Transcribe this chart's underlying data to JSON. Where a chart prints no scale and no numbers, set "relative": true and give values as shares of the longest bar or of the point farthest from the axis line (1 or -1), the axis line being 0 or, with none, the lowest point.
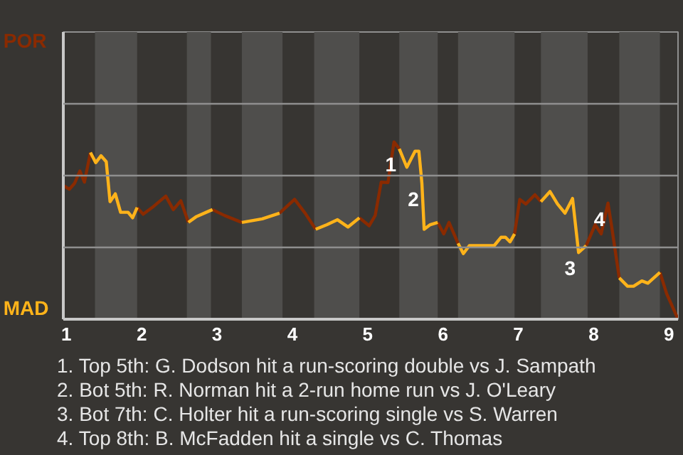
{
  "chart_data": {
    "type": "line",
    "x": [
      0.96,
      1.04,
      1.11,
      1.18,
      1.24,
      1.32,
      1.39,
      1.46,
      1.53,
      1.58,
      1.65,
      1.72,
      1.82,
      1.88,
      1.94,
      2.02,
      2.16,
      2.32,
      2.42,
      2.52,
      2.62,
      2.72,
      2.9,
      2.94,
      3.1,
      3.33,
      3.6,
      3.83,
      4.03,
      4.17,
      4.31,
      4.46,
      4.6,
      4.74,
      4.89,
      5.02,
      5.1,
      5.18,
      5.27,
      5.35,
      5.42,
      5.52,
      5.63,
      5.68,
      5.72,
      5.75,
      5.83,
      5.93,
      6.01,
      6.08,
      6.2,
      6.27,
      6.35,
      6.68,
      6.77,
      6.83,
      6.89,
      6.95,
      7.02,
      7.1,
      7.22,
      7.3,
      7.42,
      7.52,
      7.62,
      7.72,
      7.8,
      7.9,
      8.02,
      8.1,
      8.19,
      8.24,
      8.34,
      8.45,
      8.53,
      8.64,
      8.72,
      8.88,
      8.97,
      9.12
    ],
    "series": [
      {
        "name": "POR",
        "color": "#8a2a00",
        "values": [
          0.754,
          0.733,
          0.767,
          0.836,
          0.773,
          0.94,
          null,
          null,
          null,
          null,
          null,
          null,
          null,
          null,
          0.63,
          0.592,
          0.637,
          0.694,
          0.618,
          0.668,
          0.546,
          null,
          null,
          0.618,
          0.585,
          0.546,
          null,
          0.598,
          0.676,
          0.598,
          0.507,
          null,
          null,
          null,
          0.572,
          0.527,
          0.585,
          0.773,
          0.771,
          1,
          0.961,
          null,
          null,
          null,
          null,
          null,
          null,
          0.546,
          0.481,
          0.546,
          0.428,
          null,
          null,
          null,
          null,
          null,
          null,
          0.481,
          0.676,
          0.65,
          0.702,
          0.663,
          null,
          null,
          null,
          null,
          null,
          0.415,
          0.533,
          0.481,
          0.655,
          0.52,
          0.233,
          null,
          null,
          null,
          null,
          0.264,
          0.143,
          0
        ]
      },
      {
        "name": "MAD",
        "color": "#ffb31a",
        "values": [
          null,
          null,
          null,
          null,
          null,
          0.94,
          0.883,
          0.922,
          0.888,
          0.663,
          0.707,
          0.603,
          0.603,
          0.572,
          0.63,
          null,
          null,
          null,
          null,
          null,
          0.546,
          0.577,
          0.611,
          0.618,
          null,
          0.546,
          0.566,
          0.598,
          null,
          null,
          0.507,
          0.533,
          0.561,
          0.52,
          0.572,
          null,
          null,
          null,
          null,
          null,
          0.961,
          0.857,
          0.948,
          0.948,
          0.767,
          0.507,
          0.533,
          0.546,
          null,
          null,
          0.428,
          0.37,
          0.415,
          0.415,
          0.462,
          0.462,
          0.436,
          0.481,
          null,
          null,
          null,
          0.663,
          0.72,
          0.65,
          0.598,
          0.681,
          0.376,
          0.415,
          null,
          null,
          null,
          null,
          0.233,
          0.186,
          0.186,
          0.216,
          0.203,
          0.264,
          null,
          null
        ]
      }
    ],
    "relative": true,
    "xlim": [
      0.96,
      9.12
    ],
    "xticks": [
      1,
      2,
      3,
      4,
      5,
      6,
      7,
      8,
      9
    ],
    "tick_labels": "x",
    "ref_lines": [
      {
        "axis": "y",
        "value": 0.405,
        "color": "#8f8f8f",
        "line_style": "solid"
      },
      {
        "axis": "y",
        "value": 0.81,
        "color": "#8f8f8f",
        "line_style": "solid"
      },
      {
        "axis": "y",
        "value": 1.215,
        "color": "#8f8f8f",
        "line_style": "solid"
      }
    ],
    "line_style": "solid",
    "marker": "none",
    "bands": [
      {
        "axis": "x",
        "from": 1.38,
        "to": 1.94,
        "color": "#4f4e4c"
      },
      {
        "axis": "x",
        "from": 2.6,
        "to": 2.92,
        "color": "#4f4e4c"
      },
      {
        "axis": "x",
        "from": 3.33,
        "to": 3.87,
        "color": "#4f4e4c"
      },
      {
        "axis": "x",
        "from": 4.29,
        "to": 4.89,
        "color": "#4f4e4c"
      },
      {
        "axis": "x",
        "from": 5.42,
        "to": 5.93,
        "color": "#4f4e4c"
      },
      {
        "axis": "x",
        "from": 6.2,
        "to": 6.95,
        "color": "#4f4e4c"
      },
      {
        "axis": "x",
        "from": 7.3,
        "to": 7.92,
        "color": "#4f4e4c"
      },
      {
        "axis": "x",
        "from": 8.34,
        "to": 8.88,
        "color": "#4f4e4c"
      }
    ],
    "annotations": [
      {
        "text": "1",
        "x": 5.42,
        "y": 0.961
      },
      {
        "text": "2",
        "x": 5.72,
        "y": 0.767
      },
      {
        "text": "3",
        "x": 7.8,
        "y": 0.376
      },
      {
        "text": "4",
        "x": 8.19,
        "y": 0.655
      },
      "1. Top 5th: G. Dodson hit a run-scoring double vs J. Sampath",
      "2. Bot 5th: R. Norman hit a 2-run home run vs J. O'Leary",
      "3. Bot 7th: C. Holter hit a run-scoring single vs S. Warren",
      "4. Top 8th: B. McFadden hit a single vs C. Thomas"
    ]
  }
}
